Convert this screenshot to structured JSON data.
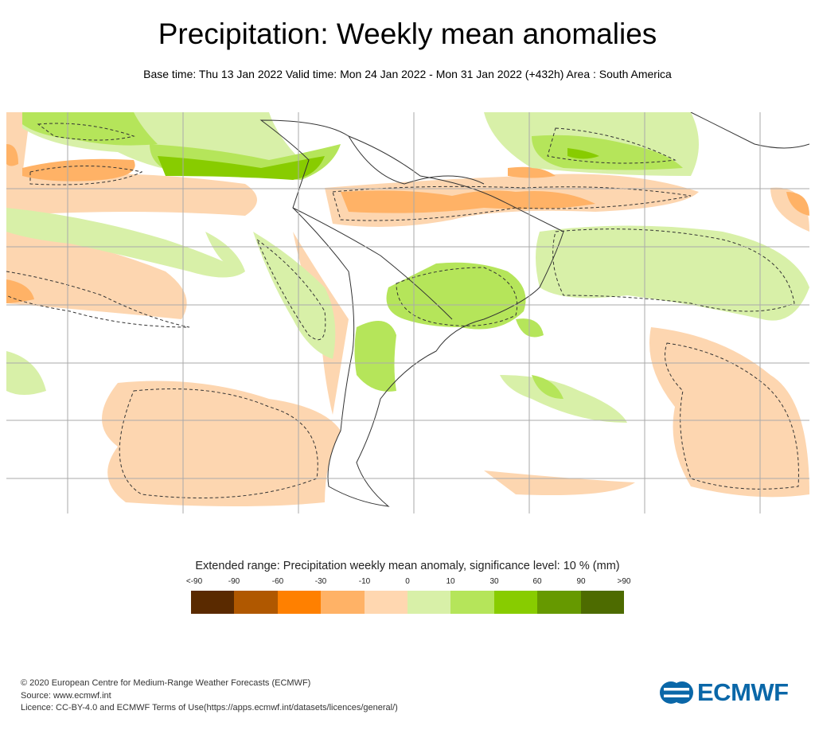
{
  "header": {
    "title": "Precipitation: Weekly mean anomalies",
    "subtitle": "Base time: Thu 13 Jan 2022 Valid time: Mon 24 Jan 2022 - Mon 31 Jan 2022 (+432h) Area : South America"
  },
  "legend": {
    "title": "Extended range: Precipitation weekly mean anomaly, significance level: 10 % (mm)",
    "ticks": [
      "<-90",
      "-90",
      "-60",
      "-30",
      "-10",
      "0",
      "10",
      "30",
      "60",
      "90",
      ">90"
    ],
    "colors": [
      "#5a2a00",
      "#b05800",
      "#ff8000",
      "#ffb266",
      "#ffd7b0",
      "#d8f0a8",
      "#b5e55a",
      "#88cc00",
      "#669900",
      "#4d6b00"
    ]
  },
  "footer": {
    "line1": "© 2020 European Centre for Medium-Range Weather Forecasts (ECMWF)",
    "line2": "Source: www.ecmwf.int",
    "line3": "Licence: CC-BY-4.0 and ECMWF Terms of Use(https://apps.ecmwf.int/datasets/licences/general/)"
  },
  "logo": {
    "text": "ECMWF",
    "color": "#0a67a8"
  }
}
